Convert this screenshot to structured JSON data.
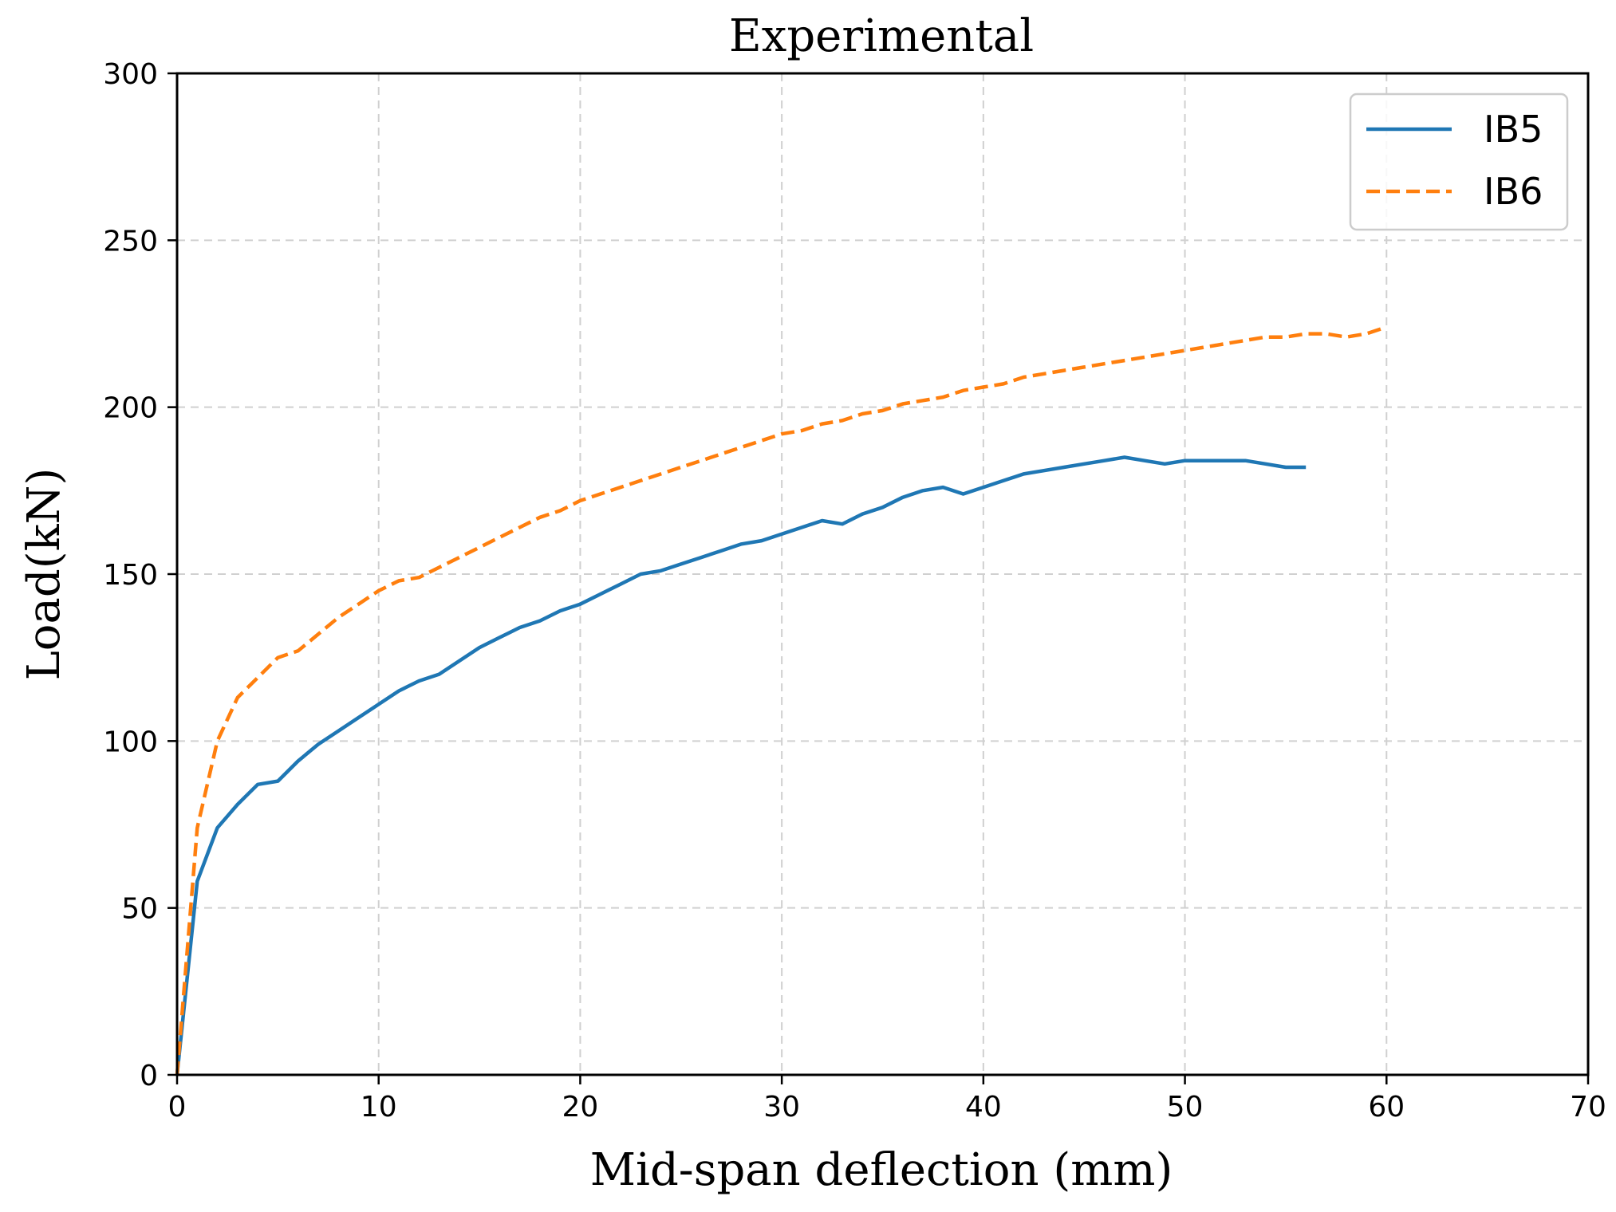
{
  "chart_data": {
    "type": "line",
    "title": "Experimental",
    "xlabel": "Mid-span deflection (mm)",
    "ylabel": "Load(kN)",
    "xlim": [
      0,
      70
    ],
    "ylim": [
      0,
      300
    ],
    "xticks": [
      0,
      10,
      20,
      30,
      40,
      50,
      60,
      70
    ],
    "yticks": [
      0,
      50,
      100,
      150,
      200,
      250,
      300
    ],
    "grid": true,
    "legend_position": "top-right",
    "series": [
      {
        "name": "IB5",
        "color": "#1f77b4",
        "style": "solid",
        "x": [
          0,
          1,
          2,
          3,
          4,
          5,
          6,
          7,
          8,
          9,
          10,
          11,
          12,
          13,
          14,
          15,
          16,
          17,
          18,
          19,
          20,
          21,
          22,
          23,
          24,
          25,
          26,
          27,
          28,
          29,
          30,
          31,
          32,
          33,
          34,
          35,
          36,
          37,
          38,
          39,
          40,
          41,
          42,
          43,
          44,
          45,
          46,
          47,
          48,
          49,
          50,
          51,
          52,
          53,
          54,
          55,
          56
        ],
        "y": [
          0,
          58,
          74,
          81,
          87,
          88,
          94,
          99,
          103,
          107,
          111,
          115,
          118,
          120,
          124,
          128,
          131,
          134,
          136,
          139,
          141,
          144,
          147,
          150,
          151,
          153,
          155,
          157,
          159,
          160,
          162,
          164,
          166,
          165,
          168,
          170,
          173,
          175,
          176,
          174,
          176,
          178,
          180,
          181,
          182,
          183,
          184,
          185,
          184,
          183,
          184,
          184,
          184,
          184,
          183,
          182,
          182
        ]
      },
      {
        "name": "IB6",
        "color": "#ff7f0e",
        "style": "dashed",
        "x": [
          0,
          1,
          2,
          3,
          4,
          5,
          6,
          7,
          8,
          9,
          10,
          11,
          12,
          13,
          14,
          15,
          16,
          17,
          18,
          19,
          20,
          21,
          22,
          23,
          24,
          25,
          26,
          27,
          28,
          29,
          30,
          31,
          32,
          33,
          34,
          35,
          36,
          37,
          38,
          39,
          40,
          41,
          42,
          43,
          44,
          45,
          46,
          47,
          48,
          49,
          50,
          51,
          52,
          53,
          54,
          55,
          56,
          57,
          58,
          59,
          60
        ],
        "y": [
          0,
          74,
          100,
          113,
          119,
          125,
          127,
          132,
          137,
          141,
          145,
          148,
          149,
          152,
          155,
          158,
          161,
          164,
          167,
          169,
          172,
          174,
          176,
          178,
          180,
          182,
          184,
          186,
          188,
          190,
          192,
          193,
          195,
          196,
          198,
          199,
          201,
          202,
          203,
          205,
          206,
          207,
          209,
          210,
          211,
          212,
          213,
          214,
          215,
          216,
          217,
          218,
          219,
          220,
          221,
          221,
          222,
          222,
          221,
          222,
          224
        ]
      }
    ]
  }
}
